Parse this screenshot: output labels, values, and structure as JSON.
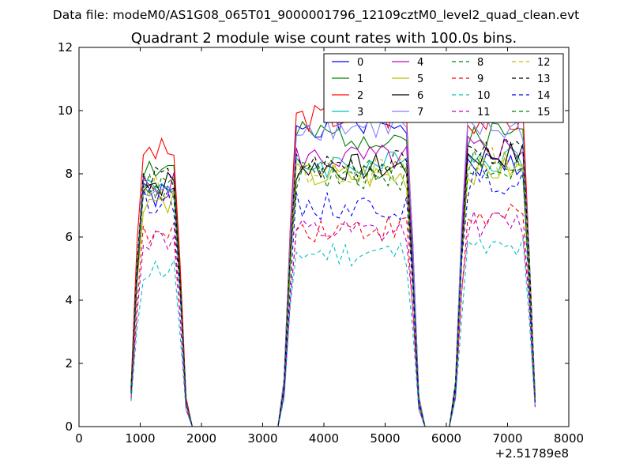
{
  "suptitle": "Data file: modeM0/AS1G08_065T01_9000001796_12109cztM0_level2_quad_clean.evt",
  "chart_data": {
    "type": "line",
    "title": "Quadrant 2 module wise count rates with 100.0s bins.",
    "xlabel": "",
    "ylabel": "",
    "x_offset_label": "+2.51789e8",
    "xlim": [
      0,
      8000
    ],
    "ylim": [
      0,
      12
    ],
    "xticks": [
      "0",
      "1000",
      "2000",
      "3000",
      "4000",
      "5000",
      "6000",
      "7000",
      "8000"
    ],
    "yticks": [
      "0",
      "2",
      "4",
      "6",
      "8",
      "10",
      "12"
    ],
    "grid": false,
    "legend": {
      "placement": "top-right",
      "columns": 4
    },
    "segments": [
      [
        850,
        1750
      ],
      [
        3350,
        5550
      ],
      [
        6150,
        7450
      ]
    ],
    "gap_value": 0,
    "series": [
      {
        "name": "0",
        "color": "#0000ff",
        "style": "solid",
        "levels": [
          7.3,
          9.6,
          8.3
        ]
      },
      {
        "name": "1",
        "color": "#008000",
        "style": "solid",
        "levels": [
          8.2,
          9.2,
          9.3
        ]
      },
      {
        "name": "2",
        "color": "#ff0000",
        "style": "solid",
        "levels": [
          8.7,
          9.8,
          9.7
        ]
      },
      {
        "name": "3",
        "color": "#00bfbf",
        "style": "solid",
        "levels": [
          7.7,
          8.3,
          8.5
        ]
      },
      {
        "name": "4",
        "color": "#bf00bf",
        "style": "solid",
        "levels": [
          7.6,
          8.5,
          8.8
        ]
      },
      {
        "name": "5",
        "color": "#bfbf00",
        "style": "solid",
        "levels": [
          7.2,
          7.9,
          8.1
        ]
      },
      {
        "name": "6",
        "color": "#000000",
        "style": "solid",
        "levels": [
          7.7,
          8.2,
          8.6
        ]
      },
      {
        "name": "7",
        "color": "#7f7fff",
        "style": "solid",
        "levels": [
          7.4,
          9.5,
          9.4
        ]
      },
      {
        "name": "8",
        "color": "#008000",
        "style": "dashed",
        "levels": [
          7.5,
          8.0,
          8.3
        ]
      },
      {
        "name": "9",
        "color": "#ff0000",
        "style": "dashed",
        "levels": [
          6.0,
          6.3,
          6.6
        ]
      },
      {
        "name": "10",
        "color": "#00bfbf",
        "style": "dashed",
        "levels": [
          5.0,
          5.5,
          5.6
        ]
      },
      {
        "name": "11",
        "color": "#bf00bf",
        "style": "dashed",
        "levels": [
          5.9,
          6.1,
          6.4
        ]
      },
      {
        "name": "12",
        "color": "#bfbf00",
        "style": "dashed",
        "levels": [
          7.6,
          8.1,
          8.4
        ]
      },
      {
        "name": "13",
        "color": "#000000",
        "style": "dashed",
        "levels": [
          7.8,
          8.3,
          8.7
        ]
      },
      {
        "name": "14",
        "color": "#0000ff",
        "style": "dashed",
        "levels": [
          7.2,
          7.0,
          7.7
        ]
      },
      {
        "name": "15",
        "color": "#008000",
        "style": "dashed",
        "levels": [
          7.6,
          7.9,
          8.2
        ]
      }
    ]
  }
}
